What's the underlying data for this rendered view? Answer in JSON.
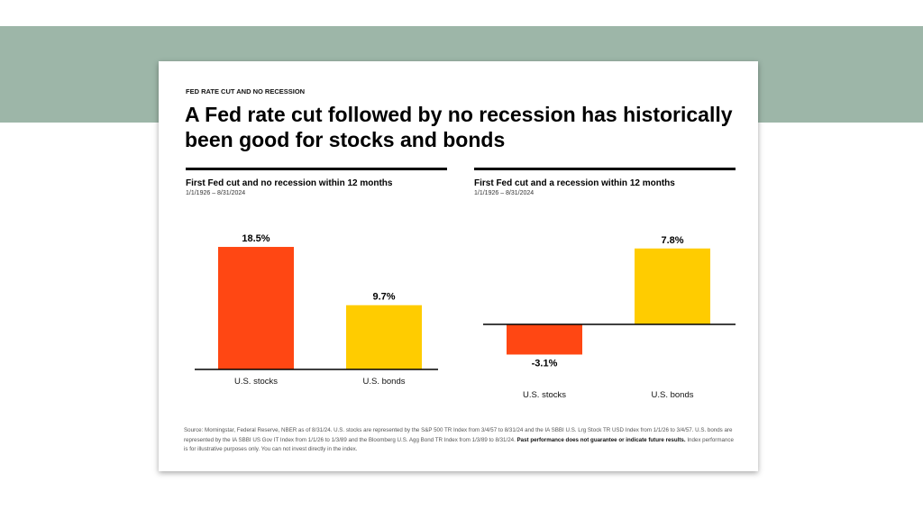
{
  "colors": {
    "band": "#9db6a8",
    "stocks": "#ff4713",
    "bonds": "#ffcc00"
  },
  "eyebrow": "FED RATE CUT AND NO RECESSION",
  "title": "A Fed rate cut followed by no recession has historically been good for stocks and bonds",
  "chart_data": [
    {
      "type": "bar",
      "title": "First Fed cut and no recession within 12 months",
      "subtitle": "1/1/1926 – 8/31/2024",
      "categories": [
        "U.S. stocks",
        "U.S. bonds"
      ],
      "values": [
        18.5,
        9.7
      ],
      "labels": [
        "18.5%",
        "9.7%"
      ],
      "colors": [
        "#ff4713",
        "#ffcc00"
      ],
      "ylim": [
        0,
        20
      ],
      "grid": false
    },
    {
      "type": "bar",
      "title": "First Fed cut and a recession within 12 months",
      "subtitle": "1/1/1926 – 8/31/2024",
      "categories": [
        "U.S. stocks",
        "U.S. bonds"
      ],
      "values": [
        -3.1,
        7.8
      ],
      "labels": [
        "-3.1%",
        "7.8%"
      ],
      "colors": [
        "#ff4713",
        "#ffcc00"
      ],
      "ylim": [
        -5,
        10
      ],
      "grid": false
    }
  ],
  "source": {
    "text": "Source: Morningstar, Federal Reserve, NBER as of 8/31/24. U.S. stocks are represented by the S&P 500 TR Index from 3/4/57 to 8/31/24 and the IA SBBI U.S. Lrg Stock TR USD Index from 1/1/26 to 3/4/57. U.S. bonds are represented by the IA SBBI US Gov IT Index from 1/1/26 to 1/3/89 and the Bloomberg U.S. Agg Bond TR Index from 1/3/89 to 8/31/24.",
    "bold": "Past performance does not guarantee or indicate future results.",
    "tail": "Index performance is for illustrative purposes only. You can not invest directly in the index."
  }
}
